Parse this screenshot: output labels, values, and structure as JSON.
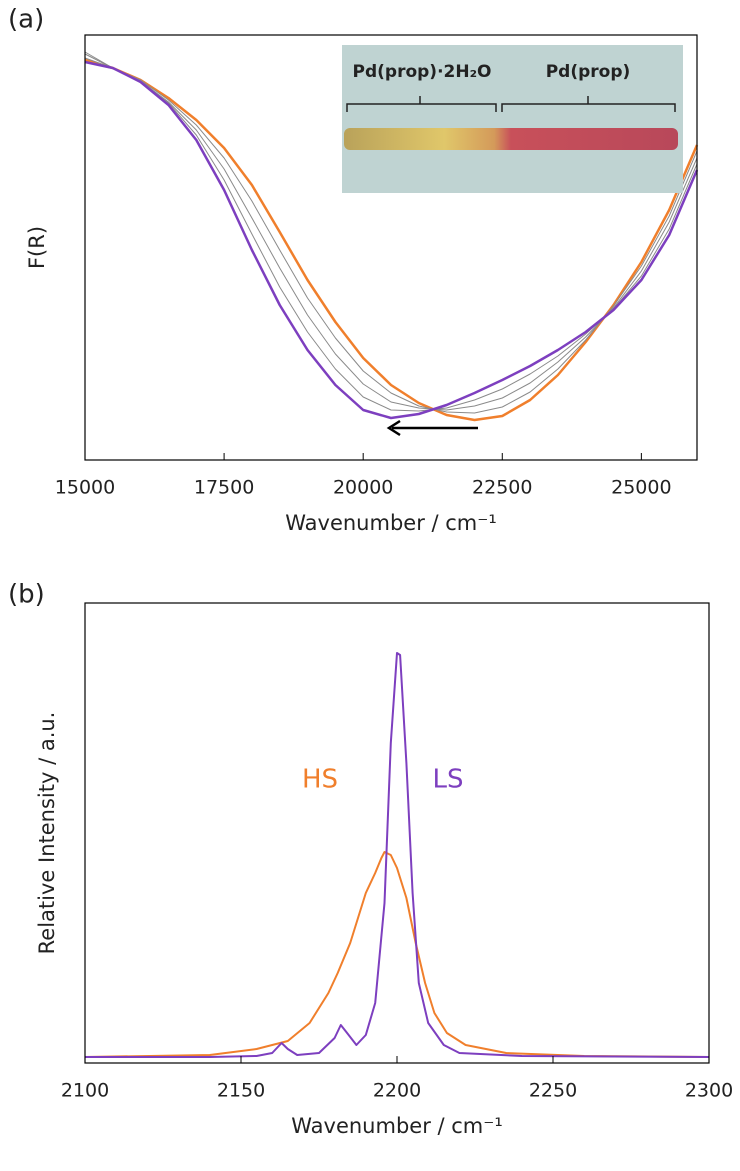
{
  "chart_data": [
    {
      "type": "line",
      "panel_label": "(a)",
      "xlabel": "Wavenumber / cm⁻¹",
      "ylabel": "F(R)",
      "x": [
        15000,
        15500,
        16000,
        16500,
        17000,
        17500,
        18000,
        18500,
        19000,
        19500,
        20000,
        20500,
        21000,
        21500,
        22000,
        22500,
        23000,
        23500,
        24000,
        24500,
        25000,
        25500,
        26000
      ],
      "series": [
        {
          "color": "#f07f2c",
          "values": [
            400,
            392,
            380,
            362,
            340,
            312,
            275,
            228,
            180,
            138,
            102,
            75,
            57,
            45,
            40,
            44,
            60,
            85,
            118,
            155,
            198,
            250,
            315
          ]
        },
        {
          "color": "#8a8a8a",
          "values": [
            408,
            392,
            380,
            360,
            335,
            302,
            259,
            210,
            162,
            122,
            89,
            67,
            54,
            48,
            47,
            53,
            68,
            91,
            120,
            154,
            194,
            244,
            309
          ]
        },
        {
          "color": "#8a8a8a",
          "values": [
            406,
            392,
            379,
            358,
            330,
            291,
            242,
            192,
            145,
            106,
            76,
            58,
            52,
            50,
            54,
            62,
            77,
            98,
            123,
            152,
            189,
            238,
            302
          ]
        },
        {
          "color": "#8a8a8a",
          "values": [
            402,
            392,
            378,
            357,
            325,
            280,
            226,
            173,
            128,
            91,
            63,
            50,
            49,
            52,
            60,
            71,
            86,
            104,
            126,
            151,
            184,
            231,
            296
          ]
        },
        {
          "color": "#7d3fbf",
          "values": [
            398,
            392,
            378,
            355,
            320,
            270,
            210,
            155,
            110,
            75,
            50,
            42,
            46,
            55,
            67,
            80,
            94,
            110,
            128,
            150,
            180,
            225,
            290
          ]
        }
      ],
      "xlim": [
        15000,
        26000
      ],
      "xticks": [
        15000,
        17500,
        20000,
        22500,
        25000
      ],
      "ylim": [
        0,
        425
      ],
      "inset_labels": [
        "Pd(prop)·2H₂O",
        "Pd(prop)"
      ]
    },
    {
      "type": "line",
      "panel_label": "(b)",
      "xlabel": "Wavenumber / cm⁻¹",
      "ylabel": "Relative Intensity / a.u.",
      "series": [
        {
          "name": "HS",
          "color": "#f07f2c",
          "x": [
            2100,
            2140,
            2155,
            2165,
            2172,
            2178,
            2181,
            2185,
            2190,
            2193,
            2195,
            2196,
            2198,
            2200,
            2203,
            2206,
            2209,
            2212,
            2216,
            2222,
            2235,
            2260,
            2300
          ],
          "values": [
            6,
            8,
            14,
            22,
            40,
            70,
            90,
            120,
            170,
            190,
            205,
            211,
            208,
            195,
            165,
            120,
            80,
            50,
            30,
            18,
            10,
            7,
            6
          ]
        },
        {
          "name": "LS",
          "color": "#7d3fbf",
          "x": [
            2100,
            2140,
            2155,
            2160,
            2163,
            2165,
            2168,
            2175,
            2180,
            2182,
            2184,
            2187,
            2190,
            2193,
            2196,
            2198,
            2200,
            2201,
            2203,
            2205,
            2207,
            2210,
            2215,
            2220,
            2240,
            2300
          ],
          "values": [
            6,
            6,
            7,
            10,
            20,
            14,
            8,
            10,
            25,
            38,
            30,
            18,
            28,
            60,
            160,
            320,
            410,
            408,
            300,
            170,
            80,
            40,
            18,
            10,
            7,
            6
          ]
        }
      ],
      "xlim": [
        2100,
        2300
      ],
      "xticks": [
        2100,
        2150,
        2200,
        2250,
        2300
      ],
      "ylim": [
        0,
        460
      ]
    }
  ]
}
